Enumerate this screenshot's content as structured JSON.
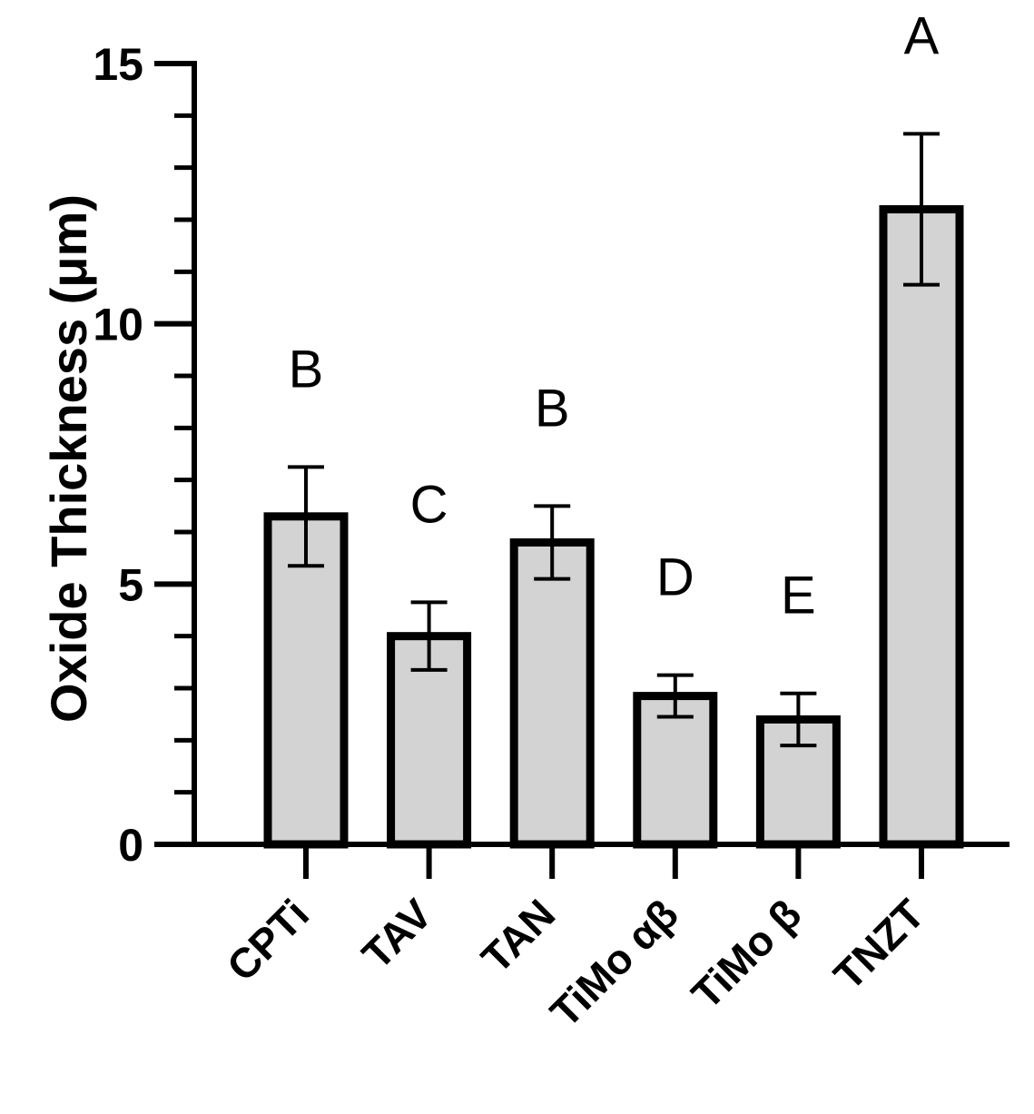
{
  "chart_data": {
    "type": "bar",
    "categories": [
      "CPTi",
      "TAV",
      "TAN",
      "TiMo αβ",
      "TiMo β",
      "TNZT"
    ],
    "values": [
      6.3,
      4.0,
      5.8,
      2.85,
      2.4,
      12.2
    ],
    "errors": [
      0.95,
      0.65,
      0.7,
      0.4,
      0.5,
      1.45
    ],
    "significance": [
      "B",
      "C",
      "B",
      "D",
      "E",
      "A"
    ],
    "xlabel": "",
    "ylabel": "Oxide Thickness (μm)",
    "ylim": [
      0,
      15
    ],
    "yticks": [
      0,
      5,
      10,
      15
    ],
    "ytick_labels": [
      "0",
      "5",
      "10",
      "15"
    ],
    "y_minor_step": 1,
    "grid": false,
    "bar_fill": "#d3d3d3",
    "bar_stroke": "#000000"
  }
}
